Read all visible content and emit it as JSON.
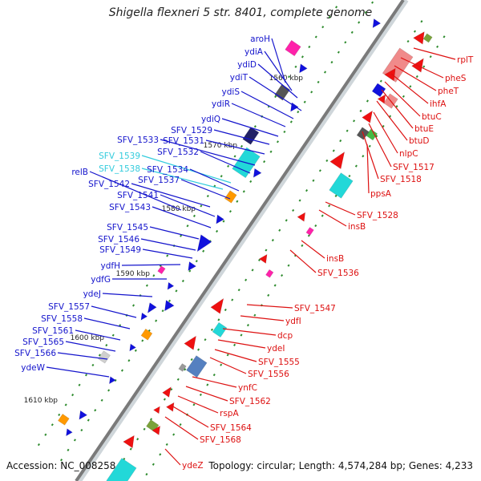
{
  "title": "Shigella flexneri 5 str. 8401, complete genome",
  "accession_text": "Accession: NC_008258",
  "topology_text": "Topology: circular; Length: 4,574,284 bp; Genes: 4,233",
  "colors": {
    "backbone": "#7a7a7a",
    "tick": "#2e8b2e",
    "left_label": "#1414cc",
    "left_label_cyan": "#33ccdd",
    "right_label": "#dd1111"
  },
  "kbp_ticks": [
    "1560 kbp",
    "1570 kbp",
    "1580 kbp",
    "1590 kbp",
    "1600 kbp",
    "1610 kbp"
  ],
  "left_labels": [
    {
      "text": "aroH",
      "color": "blue"
    },
    {
      "text": "ydiA",
      "color": "blue"
    },
    {
      "text": "ydiD",
      "color": "blue"
    },
    {
      "text": "ydiT",
      "color": "blue"
    },
    {
      "text": "ydiS",
      "color": "blue"
    },
    {
      "text": "ydiR",
      "color": "blue"
    },
    {
      "text": "ydiQ",
      "color": "blue"
    },
    {
      "text": "SFV_1529",
      "color": "blue"
    },
    {
      "text": "SFV_1531",
      "color": "blue"
    },
    {
      "text": "SFV_1533",
      "color": "blue"
    },
    {
      "text": "SFV_1532",
      "color": "blue"
    },
    {
      "text": "SFV_1539",
      "color": "cyan"
    },
    {
      "text": "SFV_1538",
      "color": "cyan"
    },
    {
      "text": "SFV_1534",
      "color": "blue"
    },
    {
      "text": "relB",
      "color": "blue"
    },
    {
      "text": "SFV_1537",
      "color": "blue"
    },
    {
      "text": "SFV_1542",
      "color": "blue"
    },
    {
      "text": "SFV_1541",
      "color": "blue"
    },
    {
      "text": "SFV_1543",
      "color": "blue"
    },
    {
      "text": "SFV_1545",
      "color": "blue"
    },
    {
      "text": "SFV_1546",
      "color": "blue"
    },
    {
      "text": "SFV_1549",
      "color": "blue"
    },
    {
      "text": "ydfH",
      "color": "blue"
    },
    {
      "text": "ydfG",
      "color": "blue"
    },
    {
      "text": "ydeJ",
      "color": "blue"
    },
    {
      "text": "SFV_1557",
      "color": "blue"
    },
    {
      "text": "SFV_1558",
      "color": "blue"
    },
    {
      "text": "SFV_1561",
      "color": "blue"
    },
    {
      "text": "SFV_1565",
      "color": "blue"
    },
    {
      "text": "SFV_1566",
      "color": "blue"
    },
    {
      "text": "ydeW",
      "color": "blue"
    }
  ],
  "right_labels": [
    "rplT",
    "pheS",
    "pheT",
    "ihfA",
    "btuC",
    "btuE",
    "btuD",
    "nlpC",
    "SFV_1517",
    "SFV_1518",
    "ppsA",
    "SFV_1528",
    "insB",
    "insB",
    "SFV_1536",
    "SFV_1547",
    "ydfI",
    "dcp",
    "ydeI",
    "SFV_1555",
    "SFV_1556",
    "ynfC",
    "SFV_1562",
    "rspA",
    "SFV_1564",
    "SFV_1568",
    "ydeZ"
  ]
}
